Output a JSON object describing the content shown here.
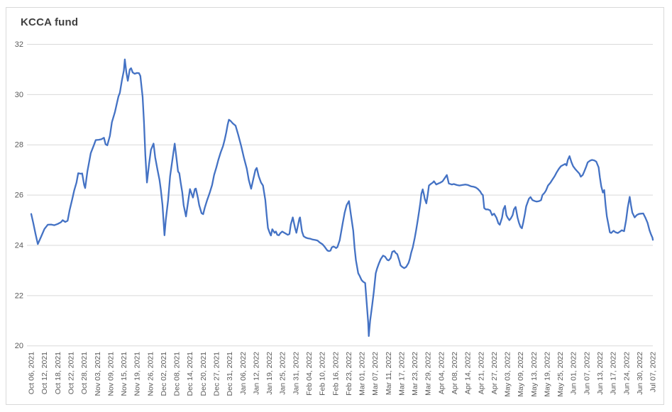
{
  "chart_data": {
    "type": "line",
    "title": "KCCA fund",
    "series_name": "KCCA fund",
    "legend": "none",
    "grid": "horizontal",
    "ylim": [
      20,
      32
    ],
    "yticks": [
      20,
      22,
      24,
      26,
      28,
      30,
      32
    ],
    "points_per_tick": 4,
    "n_points": 189,
    "x_unit": "trading-day index",
    "colors": {
      "line": "#4472C4",
      "gridline": "#D9D9D9",
      "frame_border": "#D9D9D9",
      "axis_text": "#595959",
      "title_text": "#404040",
      "background": "#FFFFFF"
    },
    "x_tick_labels": [
      "Oct 06, 2021",
      "Oct 12, 2021",
      "Oct 18, 2021",
      "Oct 22, 2021",
      "Oct 28, 2021",
      "Nov 03, 2021",
      "Nov 09, 2021",
      "Nov 15, 2021",
      "Nov 19, 2021",
      "Nov 26, 2021",
      "Dec 02, 2021",
      "Dec 08, 2021",
      "Dec 14, 2021",
      "Dec 20, 2021",
      "Dec 27, 2021",
      "Dec 31, 2021",
      "Jan 06, 2022",
      "Jan 12, 2022",
      "Jan 19, 2022",
      "Jan 25, 2022",
      "Jan 31, 2022",
      "Feb 04, 2022",
      "Feb 10, 2022",
      "Feb 16, 2022",
      "Feb 23, 2022",
      "Mar 01, 2022",
      "Mar 07, 2022",
      "Mar 11, 2022",
      "Mar 17, 2022",
      "Mar 23, 2022",
      "Mar 29, 2022",
      "Apr 04, 2022",
      "Apr 08, 2022",
      "Apr 14, 2022",
      "Apr 21, 2022",
      "Apr 27, 2022",
      "May 03, 2022",
      "May 09, 2022",
      "May 13, 2022",
      "May 19, 2022",
      "May 25, 2022",
      "Jun 01, 2022",
      "Jun 07, 2022",
      "Jun 13, 2022",
      "Jun 17, 2022",
      "Jun 24, 2022",
      "Jun 30, 2022",
      "Jul 07, 2022"
    ],
    "points": [
      [
        0,
        25.25
      ],
      [
        0.6,
        24.9
      ],
      [
        1.3,
        24.45
      ],
      [
        2,
        24.05
      ],
      [
        3,
        24.35
      ],
      [
        4,
        24.65
      ],
      [
        5,
        24.82
      ],
      [
        6,
        24.83
      ],
      [
        7,
        24.8
      ],
      [
        8,
        24.85
      ],
      [
        9,
        24.92
      ],
      [
        9.5,
        25.0
      ],
      [
        10.3,
        24.93
      ],
      [
        11,
        24.98
      ],
      [
        11.6,
        25.4
      ],
      [
        12.4,
        25.84
      ],
      [
        13,
        26.19
      ],
      [
        13.7,
        26.5
      ],
      [
        14.2,
        26.87
      ],
      [
        15,
        26.85
      ],
      [
        15.4,
        26.86
      ],
      [
        16,
        26.4
      ],
      [
        16.3,
        26.28
      ],
      [
        17,
        26.95
      ],
      [
        17.4,
        27.24
      ],
      [
        18,
        27.67
      ],
      [
        19,
        28.0
      ],
      [
        19.5,
        28.19
      ],
      [
        20.4,
        28.2
      ],
      [
        21.2,
        28.22
      ],
      [
        22,
        28.28
      ],
      [
        22.5,
        28.02
      ],
      [
        23,
        27.98
      ],
      [
        23.8,
        28.36
      ],
      [
        24.4,
        28.9
      ],
      [
        25.3,
        29.3
      ],
      [
        26,
        29.7
      ],
      [
        26.4,
        29.93
      ],
      [
        26.8,
        30.07
      ],
      [
        27.4,
        30.55
      ],
      [
        28,
        30.95
      ],
      [
        28.3,
        31.4
      ],
      [
        28.8,
        30.85
      ],
      [
        29.2,
        30.55
      ],
      [
        29.8,
        31.0
      ],
      [
        30.2,
        31.05
      ],
      [
        30.7,
        30.88
      ],
      [
        31.3,
        30.83
      ],
      [
        32,
        30.86
      ],
      [
        32.6,
        30.85
      ],
      [
        33,
        30.74
      ],
      [
        33.7,
        29.9
      ],
      [
        34.1,
        28.9
      ],
      [
        34.5,
        27.6
      ],
      [
        35,
        26.5
      ],
      [
        35.6,
        27.2
      ],
      [
        36.2,
        27.8
      ],
      [
        37,
        28.05
      ],
      [
        37.5,
        27.5
      ],
      [
        38.2,
        27.0
      ],
      [
        38.8,
        26.6
      ],
      [
        39.2,
        26.2
      ],
      [
        39.7,
        25.6
      ],
      [
        40.3,
        24.4
      ],
      [
        40.7,
        25.0
      ],
      [
        41.4,
        25.8
      ],
      [
        42,
        26.75
      ],
      [
        43,
        27.7
      ],
      [
        43.4,
        28.05
      ],
      [
        44,
        27.4
      ],
      [
        44.4,
        26.94
      ],
      [
        44.8,
        26.87
      ],
      [
        45.2,
        26.5
      ],
      [
        45.7,
        26.1
      ],
      [
        46.1,
        25.6
      ],
      [
        46.8,
        25.15
      ],
      [
        47.4,
        25.7
      ],
      [
        48,
        26.24
      ],
      [
        48.9,
        25.9
      ],
      [
        49.5,
        26.24
      ],
      [
        49.8,
        26.26
      ],
      [
        50.4,
        25.9
      ],
      [
        50.8,
        25.6
      ],
      [
        51.5,
        25.28
      ],
      [
        52,
        25.24
      ],
      [
        52.5,
        25.5
      ],
      [
        53.2,
        25.8
      ],
      [
        53.6,
        25.95
      ],
      [
        54,
        26.1
      ],
      [
        54.7,
        26.4
      ],
      [
        55.3,
        26.8
      ],
      [
        56,
        27.1
      ],
      [
        56.6,
        27.4
      ],
      [
        57.3,
        27.7
      ],
      [
        58,
        27.95
      ],
      [
        58.5,
        28.2
      ],
      [
        59,
        28.5
      ],
      [
        59.4,
        28.8
      ],
      [
        59.8,
        29.0
      ],
      [
        60.3,
        28.95
      ],
      [
        61,
        28.85
      ],
      [
        61.8,
        28.76
      ],
      [
        62.6,
        28.4
      ],
      [
        63.5,
        27.95
      ],
      [
        64.3,
        27.5
      ],
      [
        65.2,
        27.05
      ],
      [
        65.8,
        26.6
      ],
      [
        66.5,
        26.25
      ],
      [
        67.1,
        26.6
      ],
      [
        67.8,
        27.0
      ],
      [
        68.2,
        27.08
      ],
      [
        68.8,
        26.75
      ],
      [
        69.5,
        26.5
      ],
      [
        70.1,
        26.38
      ],
      [
        70.8,
        25.8
      ],
      [
        71.2,
        25.2
      ],
      [
        71.6,
        24.69
      ],
      [
        72.1,
        24.5
      ],
      [
        72.5,
        24.39
      ],
      [
        72.9,
        24.64
      ],
      [
        73.6,
        24.5
      ],
      [
        74,
        24.55
      ],
      [
        74.4,
        24.42
      ],
      [
        74.9,
        24.4
      ],
      [
        75.3,
        24.48
      ],
      [
        75.9,
        24.55
      ],
      [
        76.8,
        24.48
      ],
      [
        77.6,
        24.42
      ],
      [
        78.1,
        24.45
      ],
      [
        78.5,
        24.83
      ],
      [
        79.1,
        25.11
      ],
      [
        79.8,
        24.69
      ],
      [
        80.2,
        24.5
      ],
      [
        81.1,
        25.07
      ],
      [
        81.3,
        25.11
      ],
      [
        81.9,
        24.55
      ],
      [
        82.4,
        24.36
      ],
      [
        83,
        24.31
      ],
      [
        83.6,
        24.28
      ],
      [
        84.5,
        24.26
      ],
      [
        85.1,
        24.23
      ],
      [
        86,
        24.21
      ],
      [
        86.6,
        24.19
      ],
      [
        87.3,
        24.11
      ],
      [
        88.1,
        24.04
      ],
      [
        88.8,
        23.93
      ],
      [
        89.2,
        23.86
      ],
      [
        89.6,
        23.79
      ],
      [
        90.1,
        23.77
      ],
      [
        90.5,
        23.79
      ],
      [
        90.9,
        23.92
      ],
      [
        91.4,
        23.95
      ],
      [
        91.8,
        23.93
      ],
      [
        92.2,
        23.89
      ],
      [
        92.6,
        23.93
      ],
      [
        93.3,
        24.2
      ],
      [
        94.2,
        24.87
      ],
      [
        94.8,
        25.3
      ],
      [
        95.4,
        25.6
      ],
      [
        96.1,
        25.76
      ],
      [
        96.7,
        25.2
      ],
      [
        97.4,
        24.58
      ],
      [
        97.8,
        23.9
      ],
      [
        98.2,
        23.4
      ],
      [
        98.9,
        22.89
      ],
      [
        99.3,
        22.79
      ],
      [
        99.9,
        22.62
      ],
      [
        100.4,
        22.55
      ],
      [
        101,
        22.5
      ],
      [
        101.4,
        21.8
      ],
      [
        101.9,
        20.95
      ],
      [
        102.1,
        20.39
      ],
      [
        102.5,
        21.0
      ],
      [
        103.1,
        21.6
      ],
      [
        103.6,
        22.13
      ],
      [
        104.2,
        22.89
      ],
      [
        104.6,
        23.08
      ],
      [
        105.1,
        23.26
      ],
      [
        105.7,
        23.45
      ],
      [
        106.4,
        23.59
      ],
      [
        107,
        23.55
      ],
      [
        107.7,
        23.42
      ],
      [
        108.1,
        23.4
      ],
      [
        108.7,
        23.49
      ],
      [
        109.2,
        23.74
      ],
      [
        109.8,
        23.78
      ],
      [
        110.2,
        23.7
      ],
      [
        110.7,
        23.65
      ],
      [
        111.3,
        23.4
      ],
      [
        111.7,
        23.2
      ],
      [
        112.2,
        23.14
      ],
      [
        112.8,
        23.09
      ],
      [
        113.4,
        23.14
      ],
      [
        114.1,
        23.3
      ],
      [
        114.5,
        23.46
      ],
      [
        114.9,
        23.7
      ],
      [
        115.4,
        23.92
      ],
      [
        116,
        24.3
      ],
      [
        116.4,
        24.6
      ],
      [
        116.9,
        25.0
      ],
      [
        117.3,
        25.35
      ],
      [
        117.7,
        25.7
      ],
      [
        118,
        26.05
      ],
      [
        118.4,
        26.23
      ],
      [
        118.8,
        26.0
      ],
      [
        119,
        25.86
      ],
      [
        119.5,
        25.67
      ],
      [
        119.9,
        26.0
      ],
      [
        120.3,
        26.38
      ],
      [
        120.9,
        26.45
      ],
      [
        121.4,
        26.49
      ],
      [
        121.8,
        26.55
      ],
      [
        122.5,
        26.42
      ],
      [
        123.1,
        26.46
      ],
      [
        123.8,
        26.5
      ],
      [
        124.4,
        26.55
      ],
      [
        125,
        26.66
      ],
      [
        125.7,
        26.8
      ],
      [
        126.3,
        26.46
      ],
      [
        127.2,
        26.42
      ],
      [
        127.8,
        26.44
      ],
      [
        128.7,
        26.4
      ],
      [
        129.5,
        26.38
      ],
      [
        130.4,
        26.4
      ],
      [
        131.3,
        26.42
      ],
      [
        132.1,
        26.4
      ],
      [
        133,
        26.35
      ],
      [
        133.8,
        26.33
      ],
      [
        134.5,
        26.3
      ],
      [
        135.1,
        26.24
      ],
      [
        135.8,
        26.14
      ],
      [
        136.2,
        26.05
      ],
      [
        136.6,
        26.0
      ],
      [
        137,
        25.48
      ],
      [
        137.5,
        25.43
      ],
      [
        138.1,
        25.43
      ],
      [
        138.8,
        25.39
      ],
      [
        139.4,
        25.2
      ],
      [
        140,
        25.26
      ],
      [
        140.7,
        25.1
      ],
      [
        141.3,
        24.87
      ],
      [
        141.7,
        24.82
      ],
      [
        142.4,
        25.1
      ],
      [
        142.8,
        25.43
      ],
      [
        143.3,
        25.57
      ],
      [
        143.7,
        25.2
      ],
      [
        144.1,
        25.1
      ],
      [
        144.6,
        25.0
      ],
      [
        145,
        25.06
      ],
      [
        145.6,
        25.2
      ],
      [
        146,
        25.43
      ],
      [
        146.5,
        25.53
      ],
      [
        147.1,
        25.1
      ],
      [
        147.5,
        24.9
      ],
      [
        148,
        24.73
      ],
      [
        148.4,
        24.68
      ],
      [
        148.8,
        24.9
      ],
      [
        149.3,
        25.25
      ],
      [
        149.7,
        25.55
      ],
      [
        150.1,
        25.7
      ],
      [
        150.5,
        25.85
      ],
      [
        151,
        25.92
      ],
      [
        151.6,
        25.8
      ],
      [
        152.3,
        25.76
      ],
      [
        152.9,
        25.74
      ],
      [
        153.6,
        25.76
      ],
      [
        154.2,
        25.8
      ],
      [
        154.6,
        26.0
      ],
      [
        155.3,
        26.1
      ],
      [
        155.7,
        26.19
      ],
      [
        156.3,
        26.38
      ],
      [
        157,
        26.49
      ],
      [
        157.6,
        26.61
      ],
      [
        158.3,
        26.75
      ],
      [
        158.9,
        26.9
      ],
      [
        159.6,
        27.05
      ],
      [
        160.2,
        27.15
      ],
      [
        160.9,
        27.2
      ],
      [
        161.5,
        27.24
      ],
      [
        161.9,
        27.18
      ],
      [
        162.3,
        27.4
      ],
      [
        162.8,
        27.55
      ],
      [
        163.4,
        27.3
      ],
      [
        163.9,
        27.15
      ],
      [
        164.5,
        27.04
      ],
      [
        165.1,
        26.95
      ],
      [
        165.8,
        26.85
      ],
      [
        166.2,
        26.73
      ],
      [
        166.8,
        26.8
      ],
      [
        167.3,
        26.95
      ],
      [
        167.9,
        27.15
      ],
      [
        168.3,
        27.3
      ],
      [
        169,
        27.37
      ],
      [
        169.6,
        27.4
      ],
      [
        170.3,
        27.38
      ],
      [
        170.9,
        27.33
      ],
      [
        171.6,
        27.1
      ],
      [
        172,
        26.7
      ],
      [
        172.4,
        26.35
      ],
      [
        172.9,
        26.1
      ],
      [
        173.3,
        26.2
      ],
      [
        173.7,
        25.6
      ],
      [
        174.1,
        25.15
      ],
      [
        174.6,
        24.8
      ],
      [
        175,
        24.52
      ],
      [
        175.4,
        24.49
      ],
      [
        176.1,
        24.58
      ],
      [
        176.7,
        24.52
      ],
      [
        177.4,
        24.49
      ],
      [
        178,
        24.54
      ],
      [
        178.6,
        24.6
      ],
      [
        179.3,
        24.56
      ],
      [
        179.9,
        25.0
      ],
      [
        180.4,
        25.5
      ],
      [
        181,
        25.93
      ],
      [
        181.4,
        25.6
      ],
      [
        181.8,
        25.3
      ],
      [
        182.5,
        25.11
      ],
      [
        183.1,
        25.2
      ],
      [
        183.8,
        25.25
      ],
      [
        184.4,
        25.26
      ],
      [
        185.1,
        25.27
      ],
      [
        185.7,
        25.11
      ],
      [
        186.4,
        24.9
      ],
      [
        187,
        24.6
      ],
      [
        187.4,
        24.45
      ],
      [
        187.9,
        24.3
      ],
      [
        188,
        24.22
      ]
    ]
  }
}
